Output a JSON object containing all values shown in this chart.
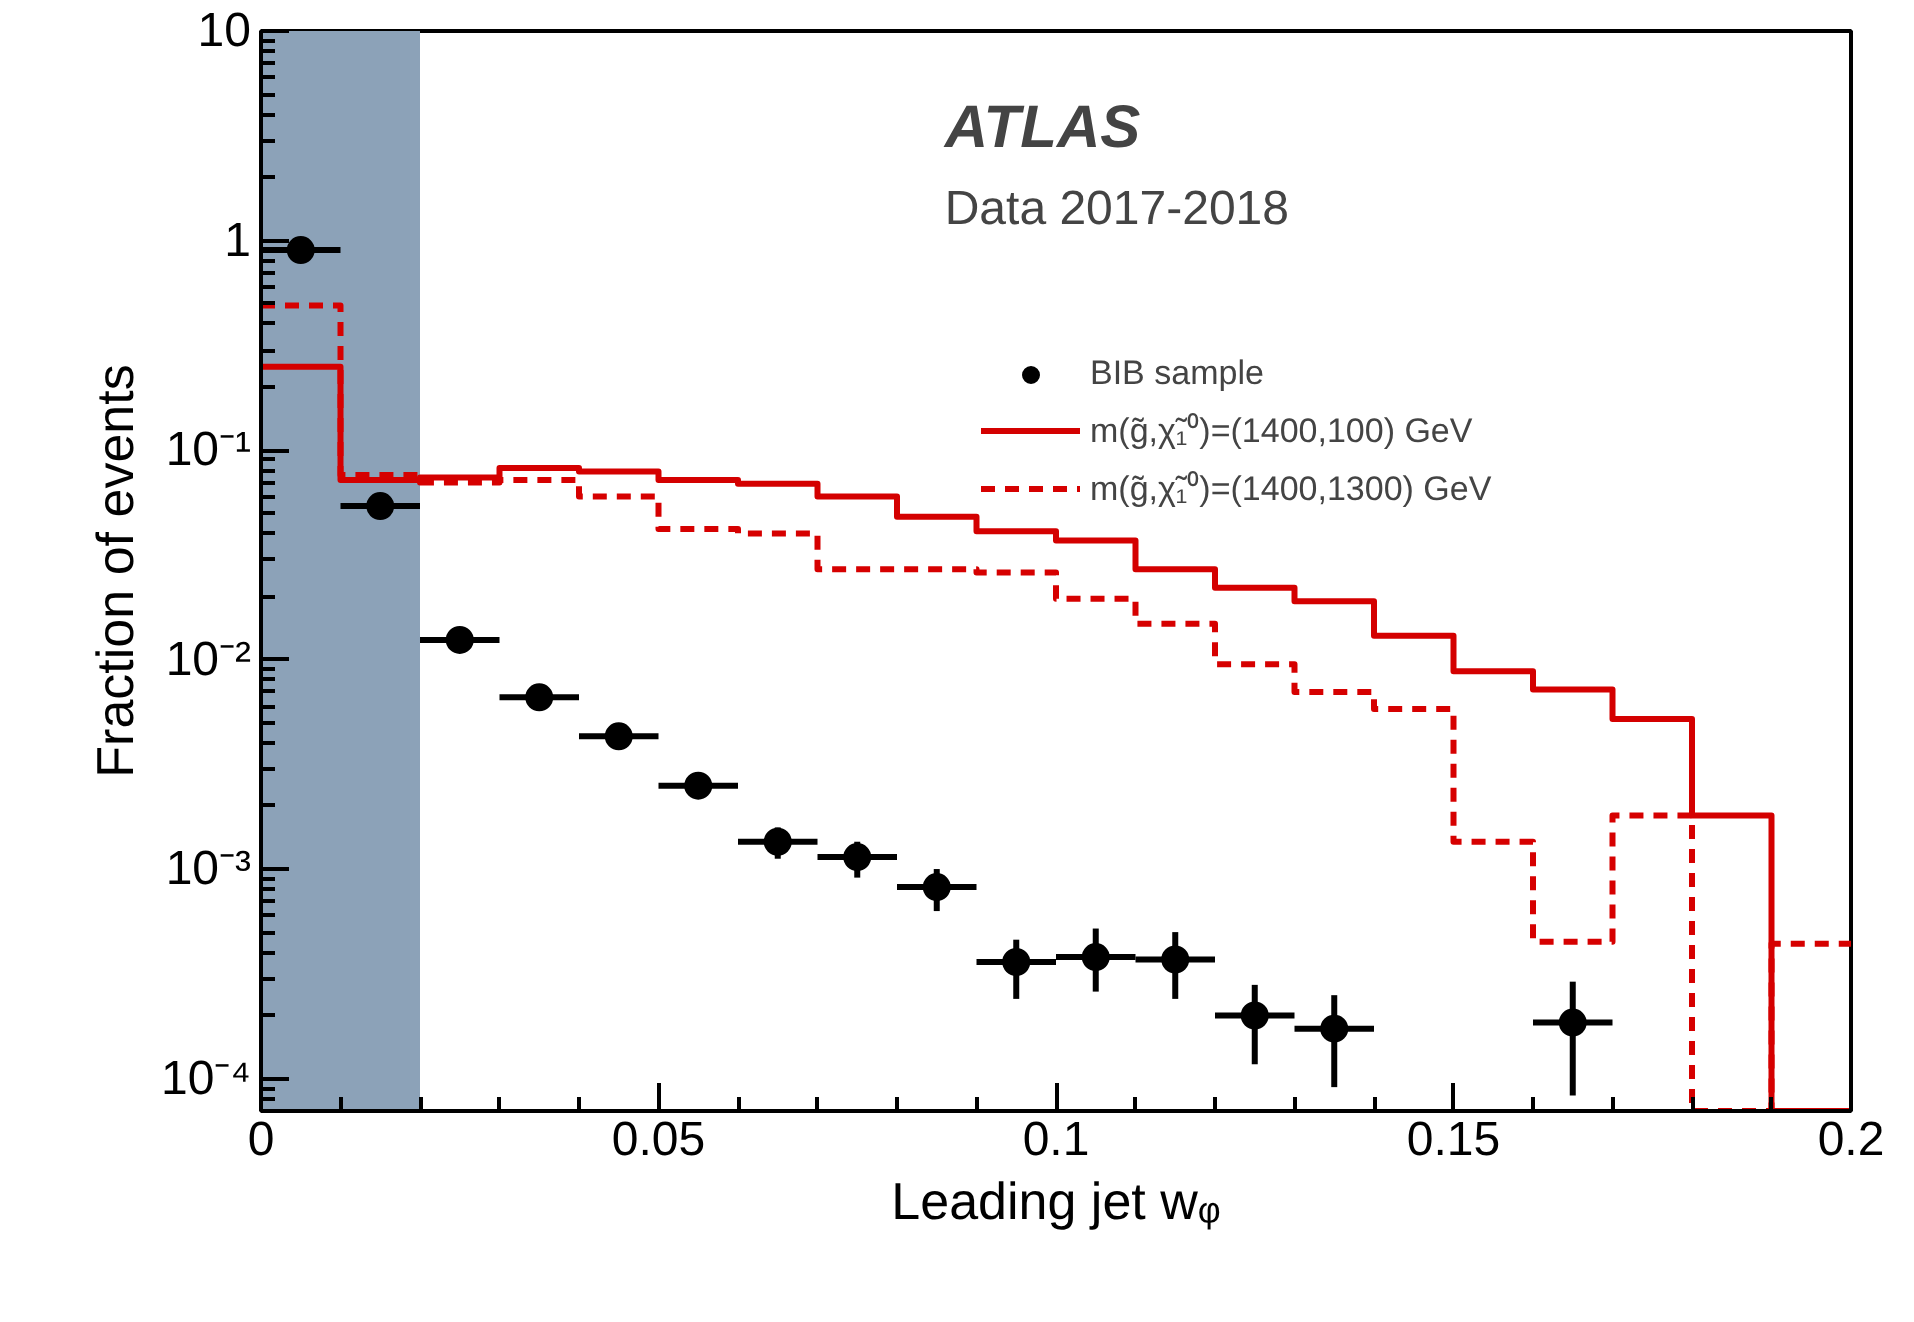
{
  "chart_data": {
    "type": "histogram",
    "xlabel": "Leading jet wᵩ",
    "ylabel": "Fraction of events",
    "log": "y",
    "bins": [
      0,
      0.01,
      0.02,
      0.03,
      0.04,
      0.05,
      0.06,
      0.07,
      0.08,
      0.09,
      0.1,
      0.11,
      0.12,
      0.13,
      0.14,
      0.15,
      0.16,
      0.17,
      0.18,
      0.19,
      0.2
    ],
    "series": [
      {
        "name": "BIB sample",
        "type": "scatter",
        "color": "#000000",
        "marker": "circle",
        "x": [
          0.005,
          0.015,
          0.025,
          0.035,
          0.045,
          0.055,
          0.065,
          0.075,
          0.085,
          0.095,
          0.105,
          0.115,
          0.125,
          0.135,
          0.165
        ],
        "values": [
          0.9,
          0.054,
          0.0124,
          0.0066,
          0.0043,
          0.0025,
          0.00135,
          0.00114,
          0.00082,
          0.00036,
          0.00038,
          0.00037,
          0.0002,
          0.000173,
          0.000185
        ],
        "xerrors": [
          0.005,
          0.005,
          0.005,
          0.005,
          0.005,
          0.005,
          0.005,
          0.005,
          0.005,
          0.005,
          0.005,
          0.005,
          0.005,
          0.005,
          0.005
        ],
        "errors": [
          null,
          null,
          null,
          null,
          null,
          [
            0.0022,
            0.0027
          ],
          [
            0.00112,
            0.00158
          ],
          [
            0.00091,
            0.00135
          ],
          [
            0.00063,
            0.001
          ],
          [
            0.00024,
            0.00046
          ],
          [
            0.00026,
            0.00052
          ],
          [
            0.00024,
            0.0005
          ],
          [
            0.000117,
            0.00028
          ],
          [
            9.1e-05,
            0.00025
          ],
          [
            8.3e-05,
            0.00029
          ]
        ]
      },
      {
        "name": "m(g̃,χ̃₁⁰)=(1400,100) GeV",
        "color": "#d40000",
        "line_style": "solid",
        "values": [
          0.25,
          0.072,
          0.074,
          0.082,
          0.079,
          0.072,
          0.069,
          0.06,
          0.048,
          0.041,
          0.037,
          0.027,
          0.022,
          0.019,
          0.013,
          0.0088,
          0.0072,
          0.0052,
          0.0018,
          null
        ]
      },
      {
        "name": "m(g̃,χ̃₁⁰)=(1400,1300) GeV",
        "color": "#d60000",
        "line_style": "dashed",
        "values": [
          0.49,
          0.076,
          0.07,
          0.072,
          0.06,
          0.042,
          0.04,
          0.027,
          0.027,
          0.026,
          0.0195,
          0.0148,
          0.0095,
          0.007,
          0.0058,
          0.00135,
          0.00045,
          0.0018,
          null,
          0.00044
        ]
      }
    ],
    "xlim": [
      0,
      0.2
    ],
    "xticks": [
      0,
      0.05,
      0.1,
      0.15,
      0.2
    ],
    "ylim": [
      7e-05,
      10
    ],
    "yticks": [
      {
        "value": 0.0001,
        "label": "10⁻⁴"
      },
      {
        "value": 0.001,
        "label": "10⁻³"
      },
      {
        "value": 0.01,
        "label": "10⁻²"
      },
      {
        "value": 0.1,
        "label": "10⁻¹"
      },
      {
        "value": 1,
        "label": "1"
      },
      {
        "value": 10,
        "label": "10"
      }
    ],
    "bands": [
      {
        "axis": "x",
        "from": 0,
        "to": 0.02,
        "color": "#8ca2b8"
      }
    ],
    "annotations": [
      "ATLAS",
      "Data 2017-2018"
    ],
    "legend": "top right",
    "grid": false
  }
}
